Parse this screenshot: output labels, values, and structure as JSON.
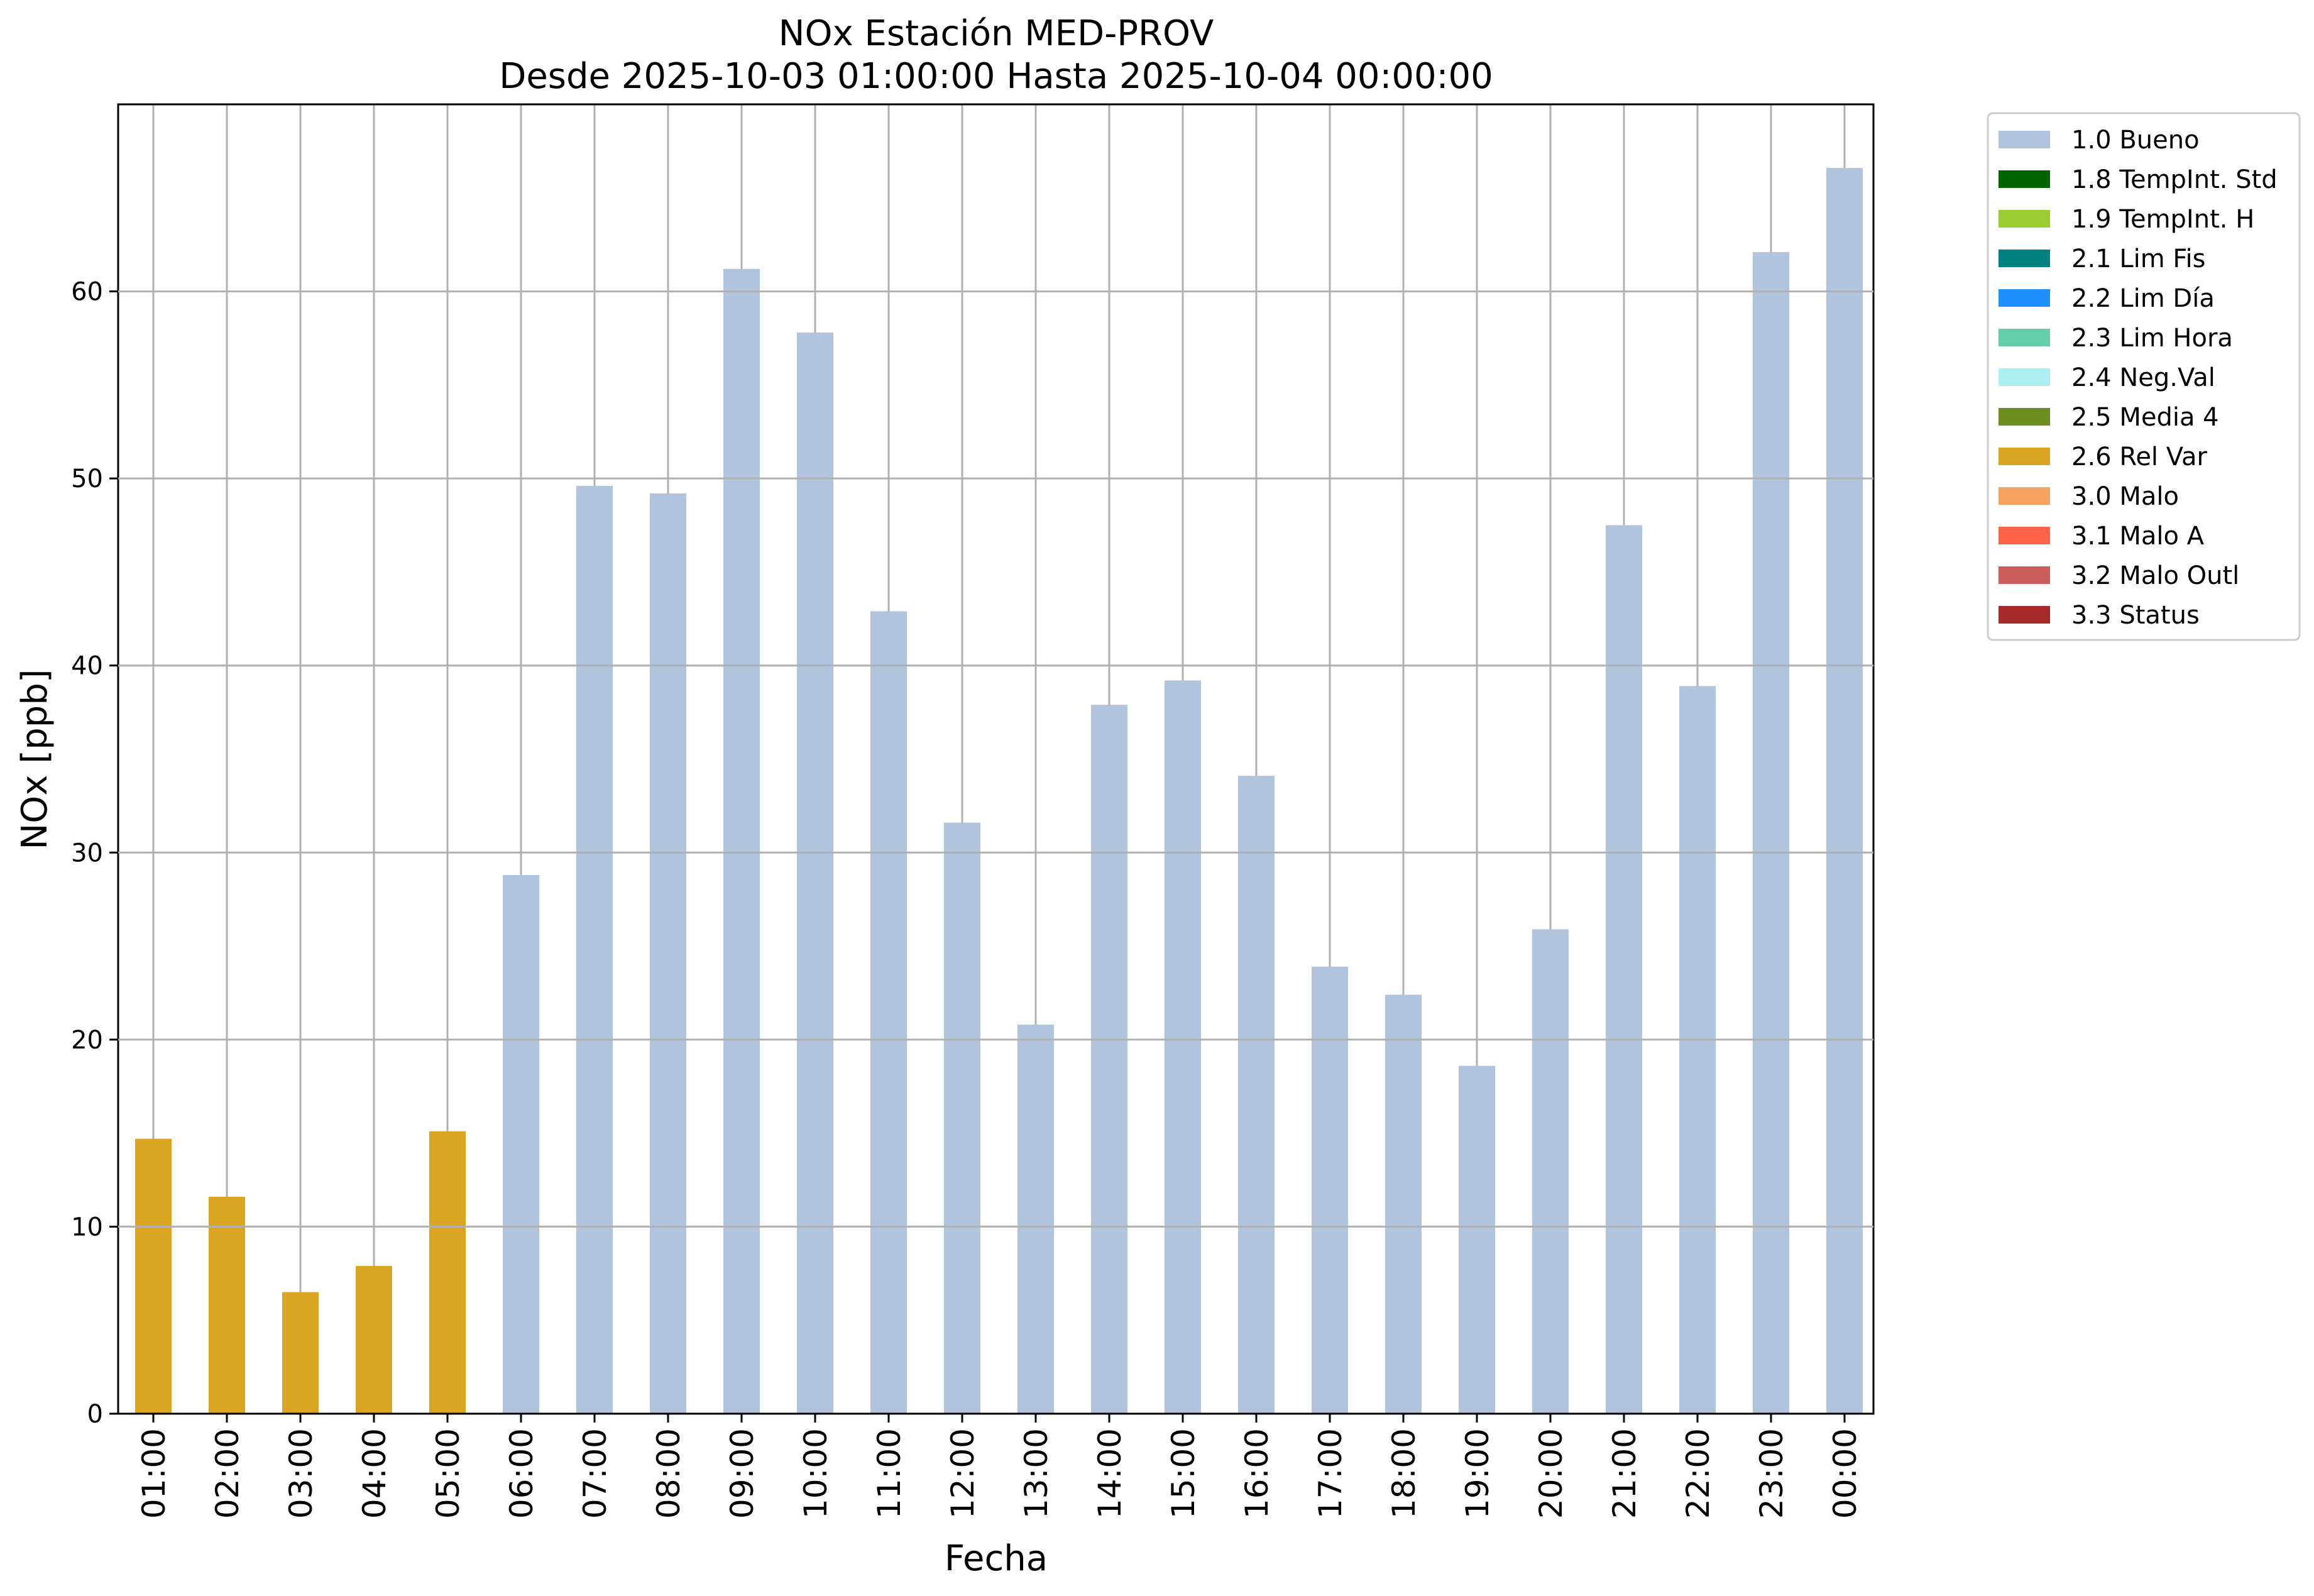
{
  "chart_data": {
    "type": "bar",
    "title": "NOx Estación MED-PROV",
    "subtitle": "Desde 2025-10-03 01:00:00 Hasta 2025-10-04 00:00:00",
    "xlabel": "Fecha",
    "ylabel": "NOx [ppb]",
    "ylim": [
      0,
      70
    ],
    "yticks": [
      "0",
      "10",
      "20",
      "30",
      "40",
      "50",
      "60"
    ],
    "grid": true,
    "legend_position": "outside-top-right",
    "categories": [
      "01:00",
      "02:00",
      "03:00",
      "04:00",
      "05:00",
      "06:00",
      "07:00",
      "08:00",
      "09:00",
      "10:00",
      "11:00",
      "12:00",
      "13:00",
      "14:00",
      "15:00",
      "16:00",
      "17:00",
      "18:00",
      "19:00",
      "20:00",
      "21:00",
      "22:00",
      "23:00",
      "00:00"
    ],
    "values": [
      14.7,
      11.6,
      6.5,
      7.9,
      15.1,
      28.8,
      49.6,
      49.2,
      61.2,
      57.8,
      42.9,
      31.6,
      20.8,
      37.9,
      39.2,
      34.1,
      23.9,
      22.4,
      18.6,
      25.9,
      47.5,
      38.9,
      62.1,
      66.6
    ],
    "bar_flags": [
      "2.6 Rel Var",
      "2.6 Rel Var",
      "2.6 Rel Var",
      "2.6 Rel Var",
      "2.6 Rel Var",
      "1.0 Bueno",
      "1.0 Bueno",
      "1.0 Bueno",
      "1.0 Bueno",
      "1.0 Bueno",
      "1.0 Bueno",
      "1.0 Bueno",
      "1.0 Bueno",
      "1.0 Bueno",
      "1.0 Bueno",
      "1.0 Bueno",
      "1.0 Bueno",
      "1.0 Bueno",
      "1.0 Bueno",
      "1.0 Bueno",
      "1.0 Bueno",
      "1.0 Bueno",
      "1.0 Bueno",
      "1.0 Bueno"
    ],
    "legend": [
      {
        "label": "1.0 Bueno",
        "color": "#b0c4de"
      },
      {
        "label": "1.8 TempInt. Std",
        "color": "#006400"
      },
      {
        "label": "1.9 TempInt. H",
        "color": "#9acd32"
      },
      {
        "label": "2.1 Lim Fis",
        "color": "#008080"
      },
      {
        "label": "2.2 Lim Día",
        "color": "#1e90ff"
      },
      {
        "label": "2.3 Lim Hora",
        "color": "#66cdaa"
      },
      {
        "label": "2.4 Neg.Val",
        "color": "#afeeee"
      },
      {
        "label": "2.5 Media 4",
        "color": "#6b8e23"
      },
      {
        "label": "2.6 Rel Var",
        "color": "#daa520"
      },
      {
        "label": "3.0 Malo",
        "color": "#f4a460"
      },
      {
        "label": "3.1 Malo A",
        "color": "#ff6347"
      },
      {
        "label": "3.2 Malo Outl",
        "color": "#cd5c5c"
      },
      {
        "label": "3.3 Status",
        "color": "#a52a2a"
      }
    ]
  }
}
